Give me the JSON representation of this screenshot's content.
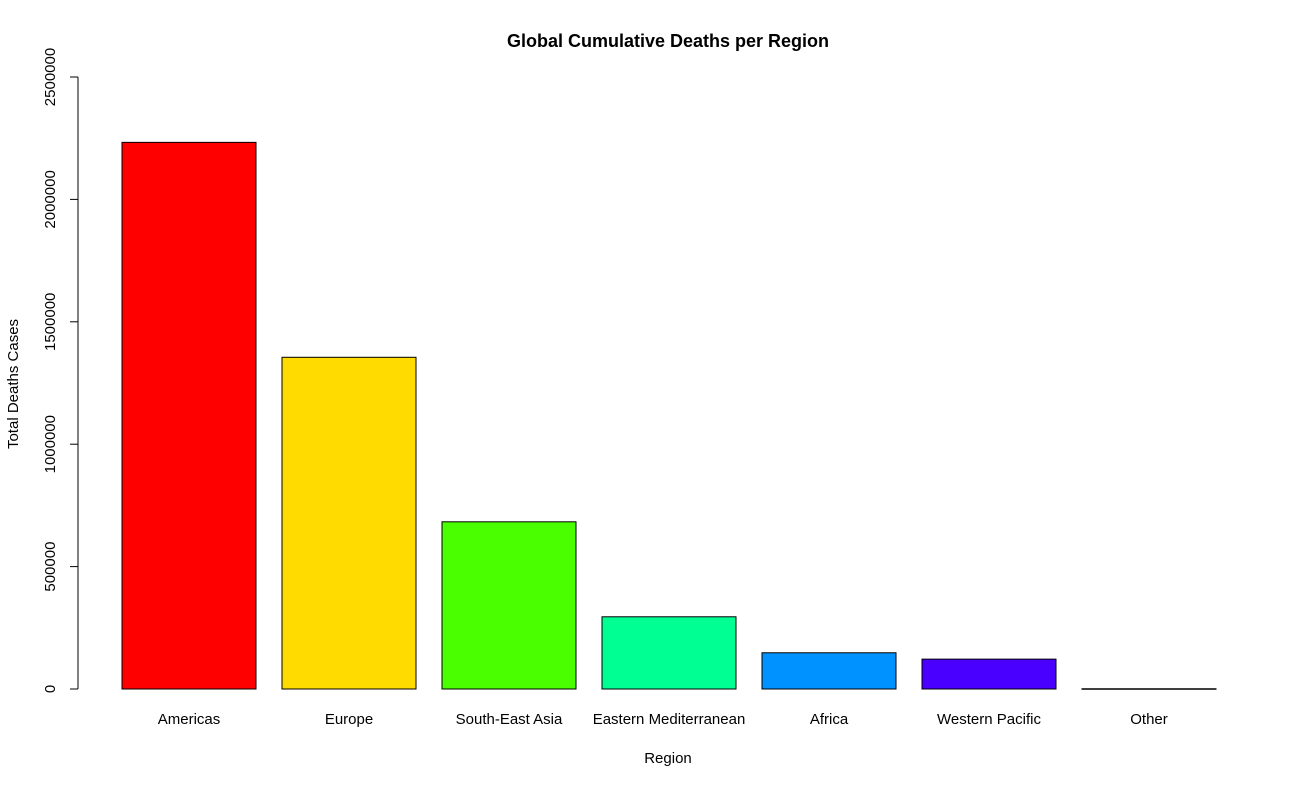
{
  "chart_data": {
    "type": "bar",
    "title": "Global Cumulative Deaths per Region",
    "xlabel": "Region",
    "ylabel": "Total Deaths Cases",
    "categories": [
      "Americas",
      "Europe",
      "South-East Asia",
      "Eastern Mediterranean",
      "Africa",
      "Western Pacific",
      "Other"
    ],
    "values": [
      2233000,
      1355000,
      683000,
      295000,
      148000,
      122000,
      1000
    ],
    "colors": [
      "#FF0000",
      "#FFDB00",
      "#49FF00",
      "#00FF92",
      "#0092FF",
      "#4900FF",
      "#FF00DB"
    ],
    "ylim": [
      0,
      2500000
    ],
    "yticks": [
      0,
      500000,
      1000000,
      1500000,
      2000000,
      2500000
    ],
    "ytick_labels": [
      "0",
      "500000",
      "1000000",
      "1500000",
      "2000000",
      "2500000"
    ],
    "grid": false,
    "legend": "none"
  }
}
